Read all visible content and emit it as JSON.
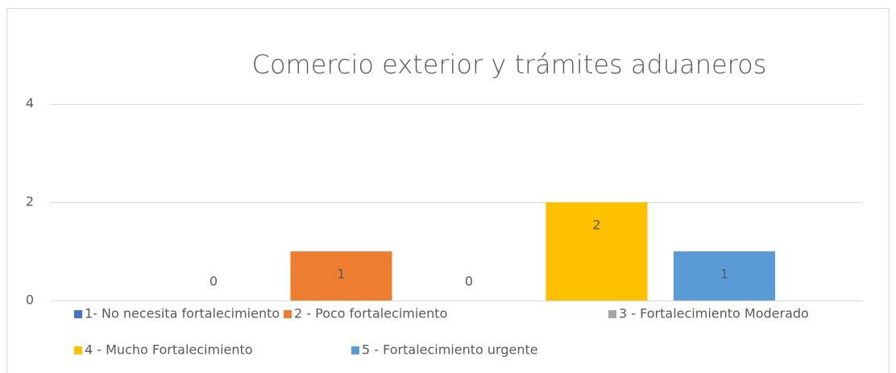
{
  "chart_data": {
    "type": "bar",
    "title": "Comercio exterior y trámites aduaneros",
    "categories": [
      null
    ],
    "series": [
      {
        "name": "1- No necesita fortalecimiento",
        "color": "#4472c4",
        "values": [
          0
        ]
      },
      {
        "name": "2 - Poco fortalecimiento",
        "color": "#ed7d31",
        "values": [
          1
        ]
      },
      {
        "name": "3 - Fortalecimiento Moderado",
        "color": "#a5a5a5",
        "values": [
          0
        ]
      },
      {
        "name": "4 - Mucho Fortalecimiento",
        "color": "#ffc000",
        "values": [
          2
        ]
      },
      {
        "name": "5 - Fortalecimiento urgente",
        "color": "#5b9bd5",
        "values": [
          1
        ]
      }
    ],
    "ylim": [
      0,
      4
    ],
    "yticks": [
      0,
      2,
      4
    ],
    "grid": true,
    "legend": "bottom"
  }
}
